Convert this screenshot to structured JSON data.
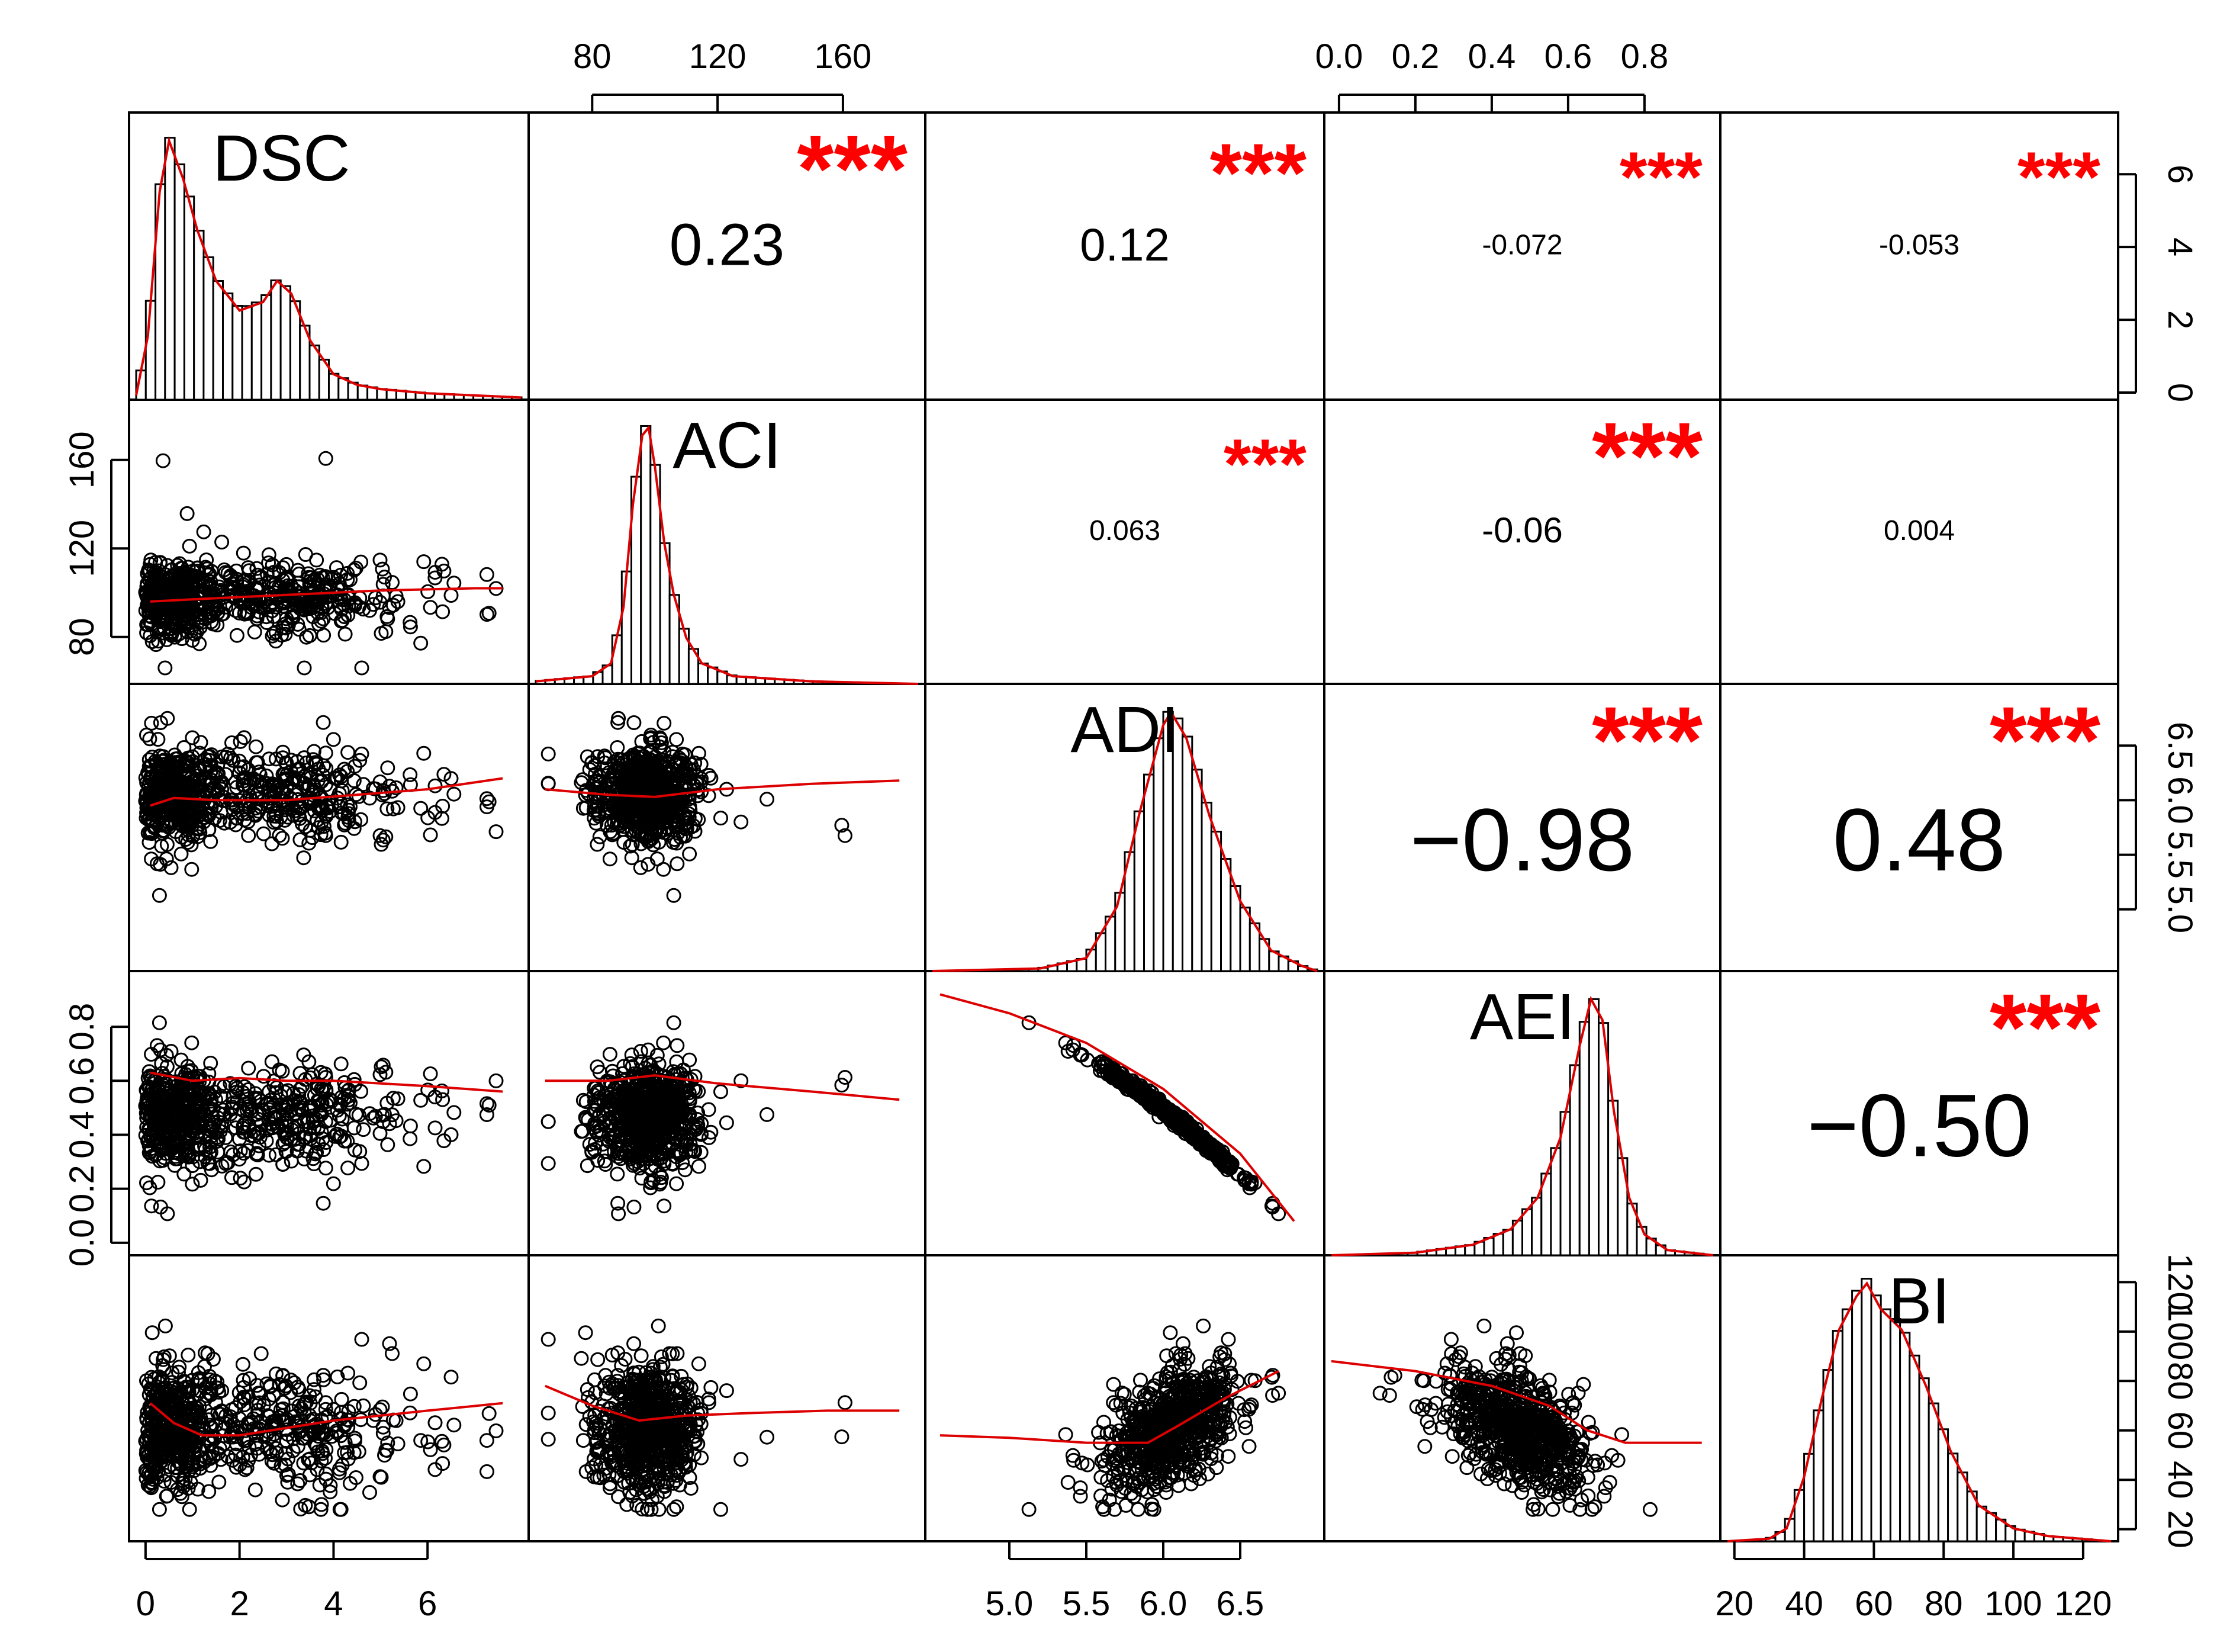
{
  "chart_data": {
    "type": "scatter",
    "layout": "pairs-matrix",
    "variables": [
      "DSC",
      "ACI",
      "ADI",
      "AEI",
      "BI"
    ],
    "ranges": {
      "DSC": [
        -0.2,
        8.0
      ],
      "ACI": [
        62,
        184
      ],
      "ADI": [
        4.5,
        7.0
      ],
      "AEI": [
        -0.02,
        0.98
      ],
      "BI": [
        18,
        128
      ]
    },
    "ticks": {
      "DSC": [
        "0",
        "2",
        "4",
        "6"
      ],
      "ACI": [
        "80",
        "120",
        "160"
      ],
      "ADI": [
        "5.0",
        "5.5",
        "6.0",
        "6.5"
      ],
      "AEI": [
        "0.0",
        "0.2",
        "0.4",
        "0.6",
        "0.8"
      ],
      "BI": [
        "20",
        "40",
        "60",
        "80",
        "100",
        "120"
      ]
    },
    "diag_freq_ticks": [
      "0",
      "2",
      "4",
      "6"
    ],
    "axis_sides": {
      "top": [
        {
          "var": "ACI",
          "col": 1
        },
        {
          "var": "AEI",
          "col": 3
        }
      ],
      "bottom": [
        {
          "var": "DSC",
          "col": 0
        },
        {
          "var": "ADI",
          "col": 2
        },
        {
          "var": "BI",
          "col": 4
        }
      ],
      "left": [
        {
          "var": "ACI",
          "row": 1
        },
        {
          "var": "AEI",
          "row": 3
        }
      ],
      "right": [
        {
          "var": "DSC",
          "row": 0
        },
        {
          "var": "ADI",
          "row": 2
        },
        {
          "var": "BI",
          "row": 4
        }
      ]
    },
    "correlations": [
      {
        "row": 0,
        "col": 1,
        "value": "0.23",
        "stars": "***",
        "size": "large"
      },
      {
        "row": 0,
        "col": 2,
        "value": "0.12",
        "stars": "***",
        "size": "medium"
      },
      {
        "row": 0,
        "col": 3,
        "value": "-0.072",
        "stars": "***",
        "size": "small"
      },
      {
        "row": 0,
        "col": 4,
        "value": "-0.053",
        "stars": "***",
        "size": "small"
      },
      {
        "row": 1,
        "col": 2,
        "value": "0.063",
        "stars": "***",
        "size": "small"
      },
      {
        "row": 1,
        "col": 3,
        "value": "-0.06",
        "stars": "***",
        "size": "medium-small"
      },
      {
        "row": 1,
        "col": 4,
        "value": "0.004",
        "stars": "",
        "size": "small"
      },
      {
        "row": 2,
        "col": 3,
        "value": "−0.98",
        "stars": "***",
        "size": "xlarge"
      },
      {
        "row": 2,
        "col": 4,
        "value": "0.48",
        "stars": "***",
        "size": "xlarge"
      },
      {
        "row": 3,
        "col": 4,
        "value": "−0.50",
        "stars": "***",
        "size": "xlarge"
      }
    ],
    "smooth_curves": {
      "1_0": [
        [
          0.1,
          96
        ],
        [
          1,
          97
        ],
        [
          2,
          98
        ],
        [
          3,
          99
        ],
        [
          4,
          100
        ],
        [
          5,
          101
        ],
        [
          6,
          101.5
        ],
        [
          7,
          102
        ],
        [
          7.6,
          102
        ]
      ],
      "2_0": [
        [
          0.1,
          5.95
        ],
        [
          0.6,
          6.02
        ],
        [
          1.5,
          6.0
        ],
        [
          3,
          6.0
        ],
        [
          4.5,
          6.05
        ],
        [
          6,
          6.1
        ],
        [
          7.6,
          6.2
        ]
      ],
      "2_1": [
        [
          65,
          6.1
        ],
        [
          85,
          6.05
        ],
        [
          100,
          6.03
        ],
        [
          120,
          6.1
        ],
        [
          150,
          6.15
        ],
        [
          178,
          6.18
        ]
      ],
      "3_0": [
        [
          0.1,
          0.63
        ],
        [
          1,
          0.6
        ],
        [
          2,
          0.61
        ],
        [
          3,
          0.6
        ],
        [
          4,
          0.6
        ],
        [
          5,
          0.59
        ],
        [
          6,
          0.58
        ],
        [
          7.6,
          0.56
        ]
      ],
      "3_1": [
        [
          65,
          0.6
        ],
        [
          85,
          0.6
        ],
        [
          100,
          0.62
        ],
        [
          120,
          0.59
        ],
        [
          150,
          0.56
        ],
        [
          178,
          0.53
        ]
      ],
      "3_2": [
        [
          4.55,
          0.92
        ],
        [
          5.0,
          0.85
        ],
        [
          5.5,
          0.74
        ],
        [
          6.0,
          0.57
        ],
        [
          6.5,
          0.33
        ],
        [
          6.85,
          0.08
        ]
      ],
      "4_0": [
        [
          0.1,
          71
        ],
        [
          0.6,
          63
        ],
        [
          1.2,
          58
        ],
        [
          2,
          58
        ],
        [
          3,
          61
        ],
        [
          4,
          64
        ],
        [
          5,
          66
        ],
        [
          6,
          68
        ],
        [
          7.6,
          71
        ]
      ],
      "4_1": [
        [
          65,
          78
        ],
        [
          80,
          70
        ],
        [
          95,
          64
        ],
        [
          110,
          66
        ],
        [
          130,
          67
        ],
        [
          155,
          68
        ],
        [
          178,
          68
        ]
      ],
      "4_2": [
        [
          4.55,
          58
        ],
        [
          5.0,
          57
        ],
        [
          5.5,
          55
        ],
        [
          5.9,
          55
        ],
        [
          6.1,
          62
        ],
        [
          6.4,
          73
        ],
        [
          6.75,
          84
        ]
      ],
      "4_3": [
        [
          -0.02,
          88
        ],
        [
          0.2,
          84
        ],
        [
          0.4,
          78
        ],
        [
          0.55,
          70
        ],
        [
          0.65,
          60
        ],
        [
          0.75,
          55
        ],
        [
          0.95,
          55
        ]
      ]
    },
    "densities": {
      "DSC": [
        [
          -0.2,
          0.1
        ],
        [
          0.05,
          1.5
        ],
        [
          0.3,
          4.9
        ],
        [
          0.5,
          6.1
        ],
        [
          0.8,
          5.2
        ],
        [
          1.1,
          4.0
        ],
        [
          1.5,
          2.8
        ],
        [
          2.0,
          2.1
        ],
        [
          2.5,
          2.3
        ],
        [
          2.8,
          2.8
        ],
        [
          3.1,
          2.5
        ],
        [
          3.5,
          1.4
        ],
        [
          4,
          0.6
        ],
        [
          4.5,
          0.35
        ],
        [
          5,
          0.25
        ],
        [
          6,
          0.15
        ],
        [
          7,
          0.1
        ],
        [
          8,
          0.05
        ]
      ],
      "ACI": [
        [
          62,
          0.01
        ],
        [
          80,
          0.03
        ],
        [
          86,
          0.08
        ],
        [
          90,
          0.3
        ],
        [
          93,
          0.7
        ],
        [
          96,
          0.97
        ],
        [
          98,
          1.0
        ],
        [
          100,
          0.85
        ],
        [
          103,
          0.55
        ],
        [
          106,
          0.35
        ],
        [
          110,
          0.18
        ],
        [
          115,
          0.08
        ],
        [
          125,
          0.03
        ],
        [
          150,
          0.01
        ],
        [
          184,
          0.0
        ]
      ],
      "ADI": [
        [
          4.5,
          0.0
        ],
        [
          5.2,
          0.01
        ],
        [
          5.5,
          0.05
        ],
        [
          5.7,
          0.25
        ],
        [
          5.85,
          0.62
        ],
        [
          6.0,
          0.95
        ],
        [
          6.05,
          1.0
        ],
        [
          6.15,
          0.9
        ],
        [
          6.3,
          0.6
        ],
        [
          6.5,
          0.27
        ],
        [
          6.7,
          0.08
        ],
        [
          6.9,
          0.02
        ],
        [
          7.0,
          0.0
        ]
      ],
      "AEI": [
        [
          -0.02,
          0.0
        ],
        [
          0.2,
          0.01
        ],
        [
          0.35,
          0.04
        ],
        [
          0.45,
          0.1
        ],
        [
          0.52,
          0.22
        ],
        [
          0.58,
          0.45
        ],
        [
          0.63,
          0.8
        ],
        [
          0.66,
          0.98
        ],
        [
          0.69,
          0.9
        ],
        [
          0.72,
          0.55
        ],
        [
          0.76,
          0.22
        ],
        [
          0.8,
          0.08
        ],
        [
          0.86,
          0.02
        ],
        [
          0.98,
          0.0
        ]
      ],
      "BI": [
        [
          18,
          0.0
        ],
        [
          30,
          0.01
        ],
        [
          35,
          0.05
        ],
        [
          40,
          0.25
        ],
        [
          45,
          0.55
        ],
        [
          50,
          0.82
        ],
        [
          55,
          0.95
        ],
        [
          58,
          1.0
        ],
        [
          62,
          0.9
        ],
        [
          68,
          0.82
        ],
        [
          75,
          0.6
        ],
        [
          82,
          0.35
        ],
        [
          90,
          0.14
        ],
        [
          100,
          0.05
        ],
        [
          110,
          0.02
        ],
        [
          128,
          0.0
        ]
      ]
    }
  }
}
